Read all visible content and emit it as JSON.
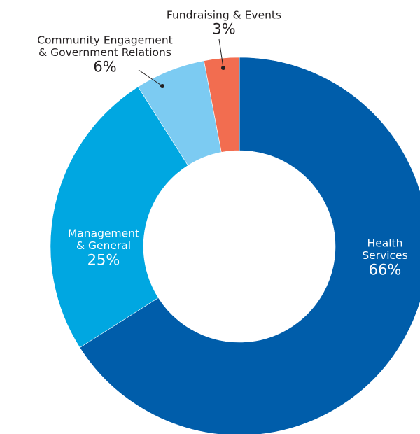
{
  "chart_data": {
    "type": "pie",
    "variant": "donut",
    "title": "",
    "start_angle_deg": 0,
    "direction": "clockwise",
    "slices": [
      {
        "name": "Health Services",
        "label_lines": [
          "Health",
          "Services"
        ],
        "value": 66,
        "value_label": "66%",
        "color": "#005daa",
        "label_color": "#ffffff"
      },
      {
        "name": "Management & General",
        "label_lines": [
          "Management",
          "& General"
        ],
        "value": 25,
        "value_label": "25%",
        "color": "#00a7e1",
        "label_color": "#ffffff"
      },
      {
        "name": "Community Engagement & Government Relations",
        "label_lines": [
          "Community Engagement",
          "& Government Relations"
        ],
        "value": 6,
        "value_label": "6%",
        "color": "#7ccbf2",
        "label_color": "#231f20"
      },
      {
        "name": "Fundraising & Events",
        "label_lines": [
          "Fundraising & Events"
        ],
        "value": 3,
        "value_label": "3%",
        "color": "#f26d50",
        "label_color": "#231f20"
      }
    ]
  }
}
